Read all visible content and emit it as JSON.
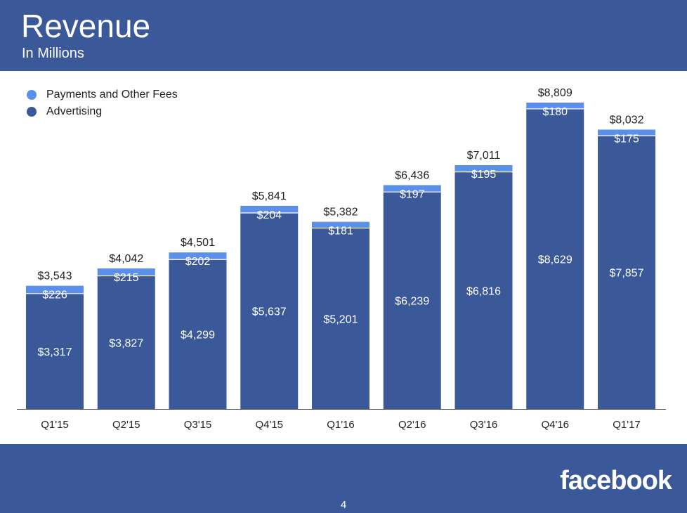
{
  "header": {
    "title": "Revenue",
    "subtitle": "In Millions"
  },
  "footer": {
    "brand": "facebook",
    "page_number": "4"
  },
  "colors": {
    "band": "#3b5998",
    "advertising": "#3b5998",
    "payments": "#5b8fe8"
  },
  "chart_data": {
    "type": "bar",
    "stacked": true,
    "title": "Revenue",
    "subtitle": "In Millions",
    "xlabel": "",
    "ylabel": "",
    "legend_position": "top-left",
    "grid": false,
    "categories": [
      "Q1'15",
      "Q2'15",
      "Q3'15",
      "Q4'15",
      "Q1'16",
      "Q2'16",
      "Q3'16",
      "Q4'16",
      "Q1'17"
    ],
    "series": [
      {
        "name": "Advertising",
        "color": "#3b5998",
        "values": [
          3317,
          3827,
          4299,
          5637,
          5201,
          6239,
          6816,
          8629,
          7857
        ],
        "labels": [
          "$3,317",
          "$3,827",
          "$4,299",
          "$5,637",
          "$5,201",
          "$6,239",
          "$6,816",
          "$8,629",
          "$7,857"
        ]
      },
      {
        "name": "Payments and Other Fees",
        "color": "#5b8fe8",
        "values": [
          226,
          215,
          202,
          204,
          181,
          197,
          195,
          180,
          175
        ],
        "labels": [
          "$226",
          "$215",
          "$202",
          "$204",
          "$181",
          "$197",
          "$195",
          "$180",
          "$175"
        ]
      }
    ],
    "totals": [
      3543,
      4042,
      4501,
      5841,
      5382,
      6436,
      7011,
      8809,
      8032
    ],
    "total_labels": [
      "$3,543",
      "$4,042",
      "$4,501",
      "$5,841",
      "$5,382",
      "$6,436",
      "$7,011",
      "$8,809",
      "$8,032"
    ],
    "legend_order": [
      "Payments and Other Fees",
      "Advertising"
    ]
  }
}
